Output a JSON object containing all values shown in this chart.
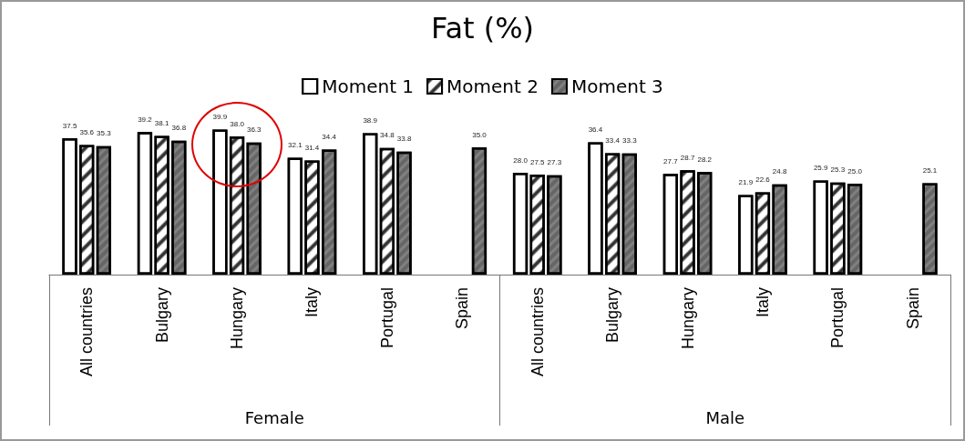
{
  "chart_data": {
    "type": "bar",
    "title": "Fat (%)",
    "categories": [
      "All countries",
      "Bulgary",
      "Hungary",
      "Italy",
      "Portugal",
      "Spain",
      "All countries",
      "Bulgary",
      "Hungary",
      "Italy",
      "Portugal",
      "Spain"
    ],
    "series": [
      {
        "name": "Moment 1",
        "color": "#ffffff",
        "values": [
          37.5,
          39.2,
          39.9,
          32.1,
          38.9,
          null,
          28.0,
          36.4,
          27.7,
          21.9,
          25.9,
          null
        ],
        "value_labels": [
          "37.5",
          "39.2",
          "39.9",
          "32.1",
          "38.9",
          null,
          "28.0",
          "36.4",
          "27.7",
          "21.9",
          "25.9",
          null
        ]
      },
      {
        "name": "Moment 2",
        "color": "#ffffff",
        "values": [
          35.6,
          38.1,
          38.0,
          31.4,
          34.8,
          null,
          27.5,
          33.4,
          28.7,
          22.6,
          25.3,
          null
        ],
        "value_labels": [
          "35.6",
          "38.1",
          "38.0",
          "31.4",
          "34.8",
          null,
          "27.5",
          "33.4",
          "28.7",
          "22.6",
          "25.3",
          null
        ]
      },
      {
        "name": "Moment 3",
        "color": "#808080",
        "values": [
          35.3,
          36.8,
          36.3,
          34.4,
          33.8,
          35.0,
          27.3,
          33.3,
          28.2,
          24.8,
          25.0,
          25.1
        ],
        "value_labels": [
          "35.3",
          "36.8",
          "36.3",
          "34.4",
          "33.8",
          "35.0",
          "27.3",
          "33.3",
          "28.2",
          "24.8",
          "25.0",
          "25.1"
        ]
      }
    ],
    "legend": "top",
    "annotations": [
      "Female",
      "Male"
    ]
  }
}
